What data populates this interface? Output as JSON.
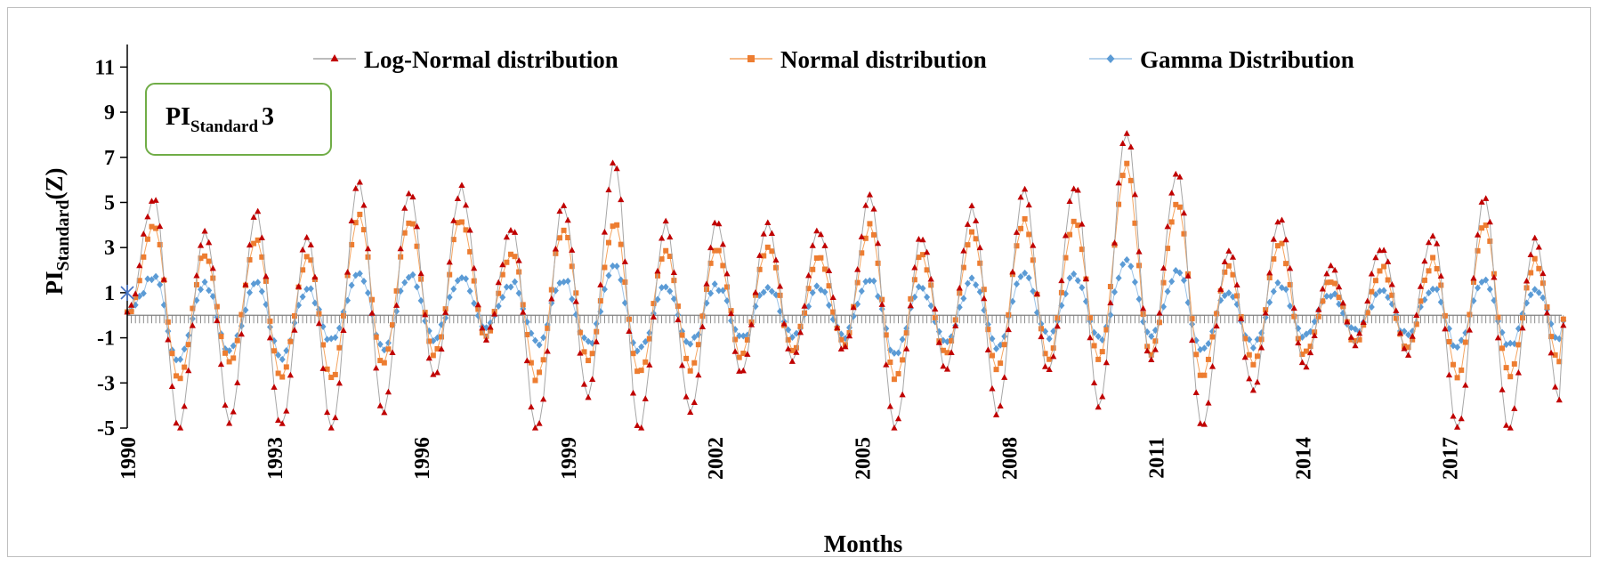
{
  "chart_data": {
    "type": "line",
    "annotation": {
      "prefix": "PI",
      "subscript": "Standard",
      "suffix": "3"
    },
    "ylabel": {
      "main": "PI",
      "subscript": "Standard",
      "suffix": "(Z)"
    },
    "xlabel": "Months",
    "ylim": [
      -5,
      12
    ],
    "yticks": [
      -5,
      -3,
      -1,
      1,
      3,
      5,
      7,
      9,
      11
    ],
    "xlim": [
      1990,
      2019.3
    ],
    "xticks": [
      1990,
      1993,
      1996,
      1999,
      2002,
      2005,
      2008,
      2011,
      2014,
      2017
    ],
    "grid": false,
    "legend_position": "top",
    "series": [
      {
        "name": "Log-Normal distribution",
        "marker": "triangle",
        "line_color": "#a6a6a6",
        "marker_color": "#c00000",
        "peaks": [
          5.2,
          3.8,
          4.7,
          3.5,
          5.9,
          5.5,
          5.6,
          3.8,
          5.0,
          6.8,
          4.0,
          4.1,
          4.0,
          3.8,
          5.2,
          3.5,
          4.7,
          5.5,
          5.7,
          8.2,
          6.4,
          2.9,
          4.4,
          2.2,
          3.1,
          3.5,
          5.2,
          3.5
        ],
        "troughs": [
          -1.0,
          -5.0,
          -4.7,
          -5.0,
          -5.0,
          -4.3,
          -2.8,
          -1.0,
          -5.0,
          -3.5,
          -5.0,
          -4.3,
          -2.6,
          -2.0,
          -1.5,
          -5.0,
          -2.3,
          -4.3,
          -2.5,
          -4.0,
          -2.0,
          -5.0,
          -3.3,
          -2.2,
          -1.2,
          -1.7,
          -5.0,
          -5.0,
          -3.7,
          -4.0,
          -2.6
        ]
      },
      {
        "name": "Normal distribution",
        "marker": "square",
        "line_color": "#f4a460",
        "marker_color": "#ed7d31",
        "peaks": [
          3.9,
          2.8,
          3.4,
          2.6,
          4.5,
          4.2,
          4.3,
          2.8,
          3.9,
          4.1,
          2.8,
          3.0,
          3.0,
          2.7,
          3.9,
          2.6,
          3.6,
          4.2,
          4.2,
          6.6,
          5.0,
          2.1,
          3.2,
          1.5,
          2.1,
          2.4,
          3.9,
          2.4
        ],
        "troughs": [
          -0.9,
          -2.8,
          -2.2,
          -2.8,
          -2.8,
          -2.2,
          -1.8,
          -0.9,
          -2.8,
          -2.0,
          -2.7,
          -2.3,
          -1.8,
          -1.5,
          -1.3,
          -2.8,
          -1.8,
          -2.3,
          -1.8,
          -2.0,
          -1.8,
          -2.8,
          -2.1,
          -1.8,
          -1.1,
          -1.4,
          -2.6,
          -2.6,
          -2.1,
          -2.1,
          -1.8
        ]
      },
      {
        "name": "Gamma Distribution",
        "marker": "diamond",
        "line_color": "#9dc3e6",
        "marker_color": "#5b9bd5",
        "peaks": [
          1.7,
          1.4,
          1.5,
          1.1,
          1.9,
          1.8,
          1.8,
          1.4,
          1.6,
          2.1,
          1.3,
          1.3,
          1.3,
          1.2,
          1.7,
          1.2,
          1.6,
          1.8,
          1.8,
          2.4,
          2.0,
          1.1,
          1.4,
          0.9,
          1.1,
          1.2,
          1.7,
          1.2
        ],
        "troughs": [
          -0.6,
          -2.0,
          -1.6,
          -1.9,
          -1.2,
          -1.4,
          -1.0,
          -0.6,
          -1.3,
          -1.3,
          -1.6,
          -1.3,
          -1.0,
          -0.9,
          -0.9,
          -1.7,
          -1.2,
          -1.4,
          -1.0,
          -1.1,
          -1.0,
          -1.6,
          -1.3,
          -1.0,
          -0.7,
          -0.9,
          -1.4,
          -1.4,
          -1.2,
          -1.2,
          -1.0
        ]
      }
    ]
  }
}
